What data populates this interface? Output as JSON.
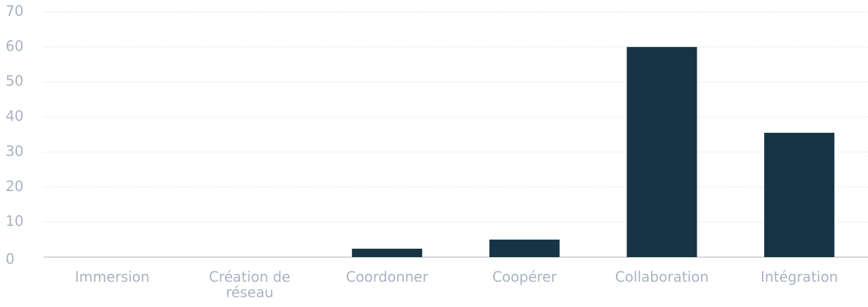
{
  "chart_data": {
    "type": "bar",
    "categories": [
      "Immersion",
      "Création de réseau",
      "Coordonner",
      "Coopérer",
      "Collaboration",
      "Intégration"
    ],
    "values": [
      0,
      0,
      2.4,
      5,
      60,
      35.5
    ],
    "color": "#163446",
    "ylim": [
      0,
      70
    ],
    "yticks": [
      0,
      10,
      20,
      30,
      40,
      50,
      60,
      70
    ],
    "grid": true
  }
}
